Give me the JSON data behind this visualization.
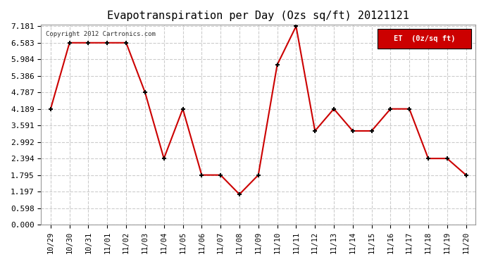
{
  "title": "Evapotranspiration per Day (Ozs sq/ft) 20121121",
  "copyright": "Copyright 2012 Cartronics.com",
  "legend_label": "ET  (0z/sq ft)",
  "x_labels": [
    "10/29",
    "10/30",
    "10/31",
    "11/01",
    "11/02",
    "11/03",
    "11/04",
    "11/05",
    "11/06",
    "11/07",
    "11/08",
    "11/09",
    "11/10",
    "11/11",
    "11/12",
    "11/13",
    "11/14",
    "11/15",
    "11/16",
    "11/17",
    "11/18",
    "11/19",
    "11/20"
  ],
  "y_values": [
    4.189,
    6.583,
    6.583,
    6.583,
    6.583,
    4.787,
    2.394,
    4.189,
    1.795,
    1.795,
    1.097,
    1.795,
    5.784,
    7.181,
    3.392,
    4.189,
    3.392,
    3.392,
    4.189,
    4.189,
    2.394,
    2.394,
    1.795
  ],
  "line_color": "#cc0000",
  "marker_color": "#000000",
  "background_color": "#ffffff",
  "grid_color": "#cccccc",
  "y_ticks": [
    0.0,
    0.598,
    1.197,
    1.795,
    2.394,
    2.992,
    3.591,
    4.189,
    4.787,
    5.386,
    5.984,
    6.583,
    7.181
  ],
  "ylim": [
    0.0,
    7.181
  ],
  "legend_bg": "#cc0000",
  "legend_text_color": "#ffffff"
}
